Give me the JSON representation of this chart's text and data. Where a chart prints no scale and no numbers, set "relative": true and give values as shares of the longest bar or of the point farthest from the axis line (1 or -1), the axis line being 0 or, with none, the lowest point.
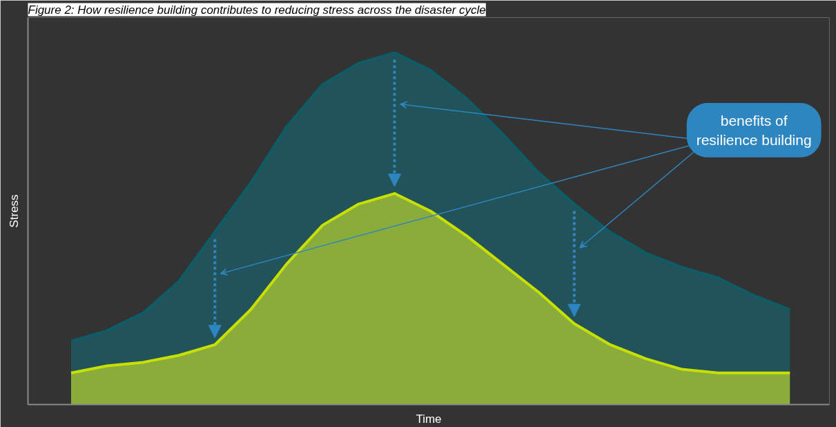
{
  "chart_data": {
    "type": "area",
    "title": "Figure 2: How resilience building contributes to reducing stress across the disaster cycle",
    "xlabel": "Time",
    "ylabel": "Stress",
    "relative": true,
    "grid": false,
    "categories": [
      null,
      null,
      null,
      null,
      null,
      null,
      null,
      null,
      null,
      null,
      null,
      null,
      null,
      null,
      null,
      null,
      null,
      null,
      null,
      null,
      null
    ],
    "series": [
      {
        "color": "#22535b",
        "values": [
          0.18,
          0.21,
          0.26,
          0.35,
          0.49,
          0.63,
          0.79,
          0.91,
          0.97,
          1.0,
          0.95,
          0.87,
          0.77,
          0.66,
          0.57,
          0.49,
          0.43,
          0.39,
          0.36,
          0.31,
          0.27
        ]
      },
      {
        "color": "#8aac3a",
        "values": [
          0.09,
          0.11,
          0.12,
          0.14,
          0.17,
          0.27,
          0.4,
          0.51,
          0.57,
          0.6,
          0.55,
          0.48,
          0.4,
          0.32,
          0.23,
          0.17,
          0.13,
          0.1,
          0.09,
          0.09,
          0.09
        ]
      }
    ],
    "annotations": [
      "benefits of resilience building"
    ]
  }
}
